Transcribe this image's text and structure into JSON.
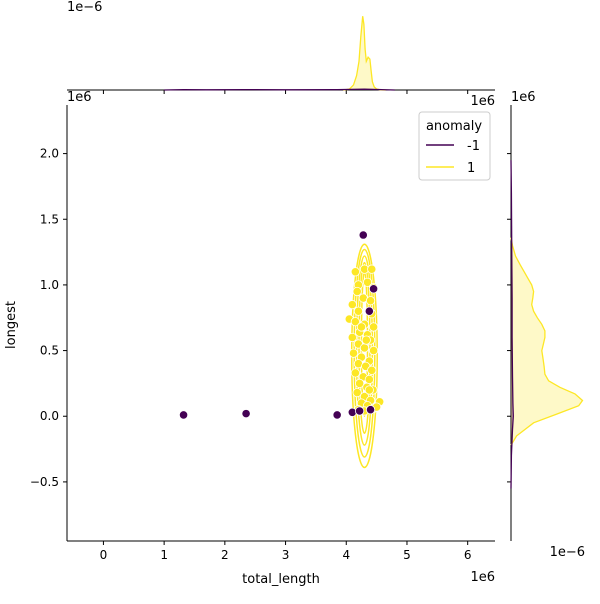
{
  "chart_data": {
    "type": "scatter",
    "title": "",
    "xlabel": "total_length",
    "ylabel": "longest",
    "x_offset_label": "1e6",
    "y_offset_label": "1e6",
    "top_marginal_offset_label": "1e−6",
    "right_marginal_top_label": "1e6",
    "right_marginal_bottom_label": "1e−6",
    "top_marginal_corner_label": "1e6",
    "xlim": [
      -0.6,
      6.45
    ],
    "ylim": [
      -0.95,
      2.37
    ],
    "xticks": [
      0,
      1,
      2,
      3,
      4,
      5,
      6
    ],
    "xtick_labels": [
      "0",
      "1",
      "2",
      "3",
      "4",
      "5",
      "6"
    ],
    "yticks": [
      -0.5,
      0.0,
      0.5,
      1.0,
      1.5,
      2.0
    ],
    "ytick_labels": [
      "−0.5",
      "0.0",
      "0.5",
      "1.0",
      "1.5",
      "2.0"
    ],
    "grid": false,
    "legend": {
      "title": "anomaly",
      "placement": "top-right",
      "entries": [
        {
          "label": "-1",
          "color": "#440154"
        },
        {
          "label": "1",
          "color": "#fde725"
        }
      ]
    },
    "series": [
      {
        "name": "-1",
        "color": "#440154",
        "points": [
          {
            "x": 1.32,
            "y": 0.01
          },
          {
            "x": 2.35,
            "y": 0.02
          },
          {
            "x": 3.85,
            "y": 0.01
          },
          {
            "x": 4.28,
            "y": 1.38
          },
          {
            "x": 4.45,
            "y": 0.97
          },
          {
            "x": 4.38,
            "y": 0.8
          },
          {
            "x": 4.1,
            "y": 0.03
          },
          {
            "x": 4.22,
            "y": 0.04
          },
          {
            "x": 4.4,
            "y": 0.05
          }
        ]
      },
      {
        "name": "1",
        "color": "#fde725",
        "points": [
          {
            "x": 4.15,
            "y": 1.1
          },
          {
            "x": 4.3,
            "y": 1.12
          },
          {
            "x": 4.42,
            "y": 1.12
          },
          {
            "x": 4.2,
            "y": 1.0
          },
          {
            "x": 4.35,
            "y": 1.02
          },
          {
            "x": 4.45,
            "y": 0.98
          },
          {
            "x": 4.18,
            "y": 0.95
          },
          {
            "x": 4.1,
            "y": 0.85
          },
          {
            "x": 4.28,
            "y": 0.9
          },
          {
            "x": 4.4,
            "y": 0.88
          },
          {
            "x": 4.2,
            "y": 0.8
          },
          {
            "x": 4.42,
            "y": 0.78
          },
          {
            "x": 4.05,
            "y": 0.74
          },
          {
            "x": 4.15,
            "y": 0.72
          },
          {
            "x": 4.3,
            "y": 0.7
          },
          {
            "x": 4.45,
            "y": 0.68
          },
          {
            "x": 4.22,
            "y": 0.64
          },
          {
            "x": 4.35,
            "y": 0.62
          },
          {
            "x": 4.1,
            "y": 0.6
          },
          {
            "x": 4.4,
            "y": 0.58
          },
          {
            "x": 4.2,
            "y": 0.55
          },
          {
            "x": 4.3,
            "y": 0.52
          },
          {
            "x": 4.45,
            "y": 0.5
          },
          {
            "x": 4.12,
            "y": 0.48
          },
          {
            "x": 4.25,
            "y": 0.45
          },
          {
            "x": 4.38,
            "y": 0.42
          },
          {
            "x": 4.2,
            "y": 0.4
          },
          {
            "x": 4.32,
            "y": 0.38
          },
          {
            "x": 4.42,
            "y": 0.35
          },
          {
            "x": 4.15,
            "y": 0.33
          },
          {
            "x": 4.28,
            "y": 0.3
          },
          {
            "x": 4.38,
            "y": 0.28
          },
          {
            "x": 4.22,
            "y": 0.25
          },
          {
            "x": 4.34,
            "y": 0.22
          },
          {
            "x": 4.44,
            "y": 0.2
          },
          {
            "x": 4.18,
            "y": 0.18
          },
          {
            "x": 4.3,
            "y": 0.15
          },
          {
            "x": 4.4,
            "y": 0.12
          },
          {
            "x": 4.25,
            "y": 0.1
          },
          {
            "x": 4.35,
            "y": 0.08
          },
          {
            "x": 4.45,
            "y": 0.06
          },
          {
            "x": 4.2,
            "y": 0.05
          },
          {
            "x": 4.55,
            "y": 0.11
          },
          {
            "x": 4.5,
            "y": 0.07
          },
          {
            "x": 4.3,
            "y": 0.04
          },
          {
            "x": 4.38,
            "y": 0.2
          },
          {
            "x": 4.25,
            "y": 0.68
          },
          {
            "x": 4.33,
            "y": 0.58
          }
        ]
      }
    ],
    "marginal_top": {
      "ylim": [
        0,
        3.9
      ],
      "curves": [
        {
          "name": "1",
          "color": "#fde725",
          "x": [
            3.95,
            4.05,
            4.12,
            4.17,
            4.21,
            4.24,
            4.27,
            4.29,
            4.31,
            4.33,
            4.36,
            4.39,
            4.41,
            4.43,
            4.46,
            4.5,
            4.56,
            4.65
          ],
          "y": [
            0.0,
            0.04,
            0.25,
            0.7,
            1.4,
            2.6,
            3.6,
            3.2,
            2.0,
            1.4,
            1.6,
            1.5,
            0.9,
            0.4,
            0.15,
            0.05,
            0.01,
            0.0
          ]
        },
        {
          "name": "-1",
          "color": "#440154",
          "x": [
            1.0,
            1.32,
            1.7,
            2.35,
            3.0,
            3.85,
            4.3,
            4.8
          ],
          "y": [
            0.0,
            0.02,
            0.01,
            0.02,
            0.01,
            0.02,
            0.04,
            0.0
          ]
        }
      ]
    },
    "marginal_right": {
      "xlim": [
        0,
        2.1
      ],
      "curves": [
        {
          "name": "1",
          "color": "#fde725",
          "y": [
            -0.22,
            -0.15,
            -0.05,
            0.02,
            0.08,
            0.12,
            0.17,
            0.22,
            0.27,
            0.32,
            0.38,
            0.44,
            0.5,
            0.55,
            0.6,
            0.65,
            0.7,
            0.75,
            0.8,
            0.85,
            0.9,
            0.95,
            1.0,
            1.05,
            1.1,
            1.15,
            1.22,
            1.3,
            1.36
          ],
          "x": [
            0.0,
            0.15,
            0.6,
            1.25,
            1.8,
            1.9,
            1.7,
            1.3,
            1.0,
            0.9,
            0.88,
            0.85,
            0.82,
            0.86,
            0.9,
            0.9,
            0.82,
            0.7,
            0.6,
            0.55,
            0.58,
            0.6,
            0.55,
            0.45,
            0.35,
            0.25,
            0.12,
            0.04,
            0.0
          ]
        },
        {
          "name": "-1",
          "color": "#440154",
          "y": [
            -0.55,
            -0.3,
            -0.1,
            0.0,
            0.1,
            0.3,
            0.6,
            0.9,
            1.2,
            1.45,
            1.7,
            1.95
          ],
          "x": [
            0.0,
            0.01,
            0.04,
            0.06,
            0.05,
            0.04,
            0.03,
            0.03,
            0.02,
            0.015,
            0.01,
            0.0
          ]
        }
      ]
    },
    "kde_contours": {
      "color": "#fde725",
      "levels": [
        {
          "cx": 4.3,
          "cy": 0.55,
          "rx": 0.05,
          "ry": 0.55
        },
        {
          "cx": 4.3,
          "cy": 0.52,
          "rx": 0.09,
          "ry": 0.65
        },
        {
          "cx": 4.3,
          "cy": 0.5,
          "rx": 0.13,
          "ry": 0.72
        },
        {
          "cx": 4.3,
          "cy": 0.48,
          "rx": 0.17,
          "ry": 0.79
        },
        {
          "cx": 4.3,
          "cy": 0.46,
          "rx": 0.21,
          "ry": 0.85
        }
      ]
    }
  }
}
